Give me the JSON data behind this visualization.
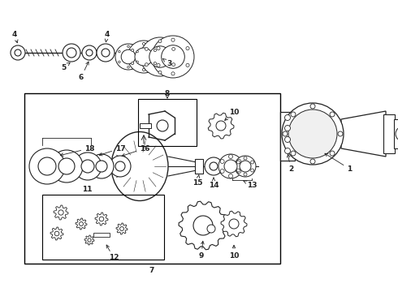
{
  "bg_color": "#ffffff",
  "line_color": "#222222",
  "label_fontsize": 6.5,
  "fig_width": 4.9,
  "fig_height": 3.6,
  "dpi": 100
}
